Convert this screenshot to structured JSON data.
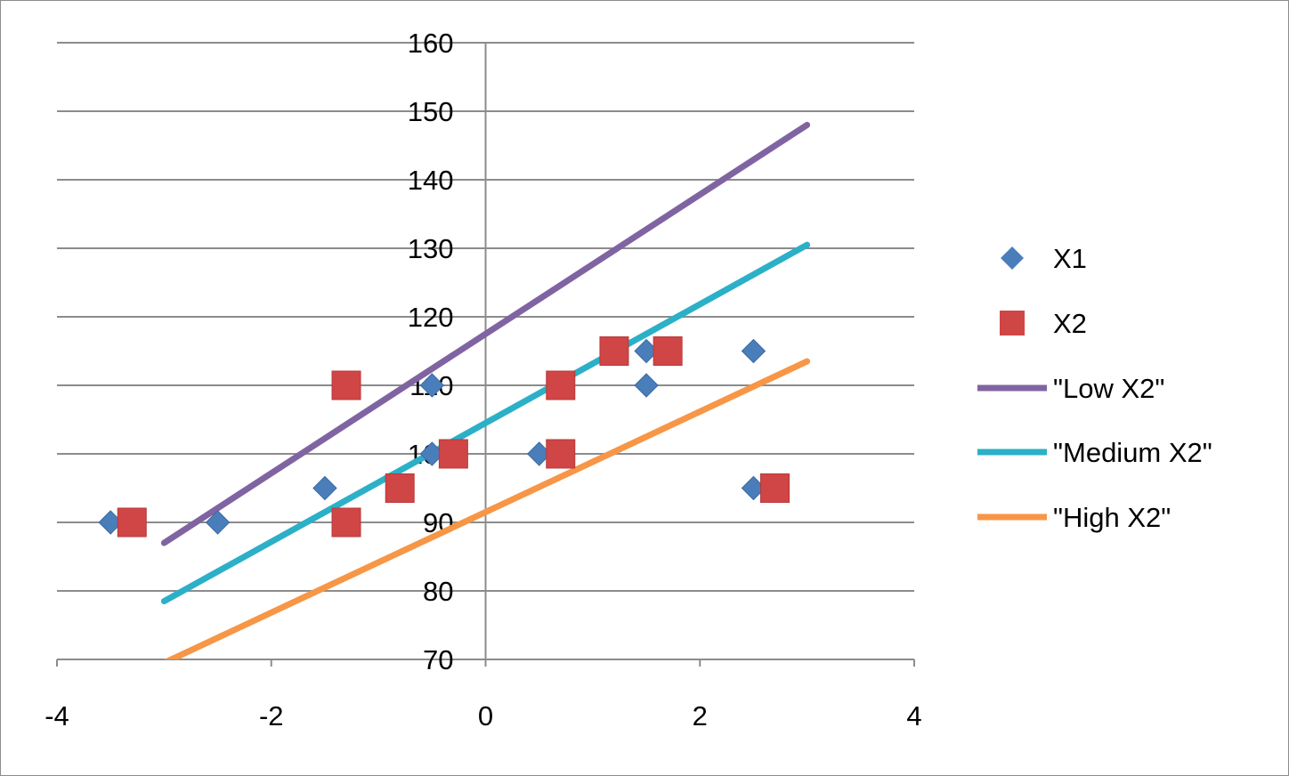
{
  "chart_data": {
    "type": "scatter",
    "title": "",
    "xlabel": "",
    "ylabel": "",
    "xlim": [
      -4,
      4
    ],
    "ylim": [
      70,
      160
    ],
    "x_ticks": [
      -4,
      -2,
      0,
      2,
      4
    ],
    "y_ticks": [
      70,
      80,
      90,
      100,
      110,
      120,
      130,
      140,
      150,
      160
    ],
    "x_tick_labels": [
      "-4",
      "-2",
      "0",
      "2",
      "4"
    ],
    "y_tick_labels": [
      "70",
      "80",
      "90",
      "100",
      "110",
      "120",
      "130",
      "140",
      "150",
      "160"
    ],
    "grid": "horizontal",
    "legend_position": "right",
    "series": [
      {
        "name": "X1",
        "kind": "scatter",
        "marker": "diamond",
        "color": "#4A7EBB",
        "points": [
          [
            -3.5,
            90
          ],
          [
            -2.5,
            90
          ],
          [
            -1.5,
            95
          ],
          [
            -0.5,
            110
          ],
          [
            -0.5,
            100
          ],
          [
            0.5,
            100
          ],
          [
            1.5,
            115
          ],
          [
            1.5,
            110
          ],
          [
            2.5,
            115
          ],
          [
            2.5,
            95
          ]
        ]
      },
      {
        "name": "X2",
        "kind": "scatter",
        "marker": "square",
        "color": "#D04545",
        "points": [
          [
            -3.3,
            90
          ],
          [
            -1.3,
            110
          ],
          [
            -1.3,
            90
          ],
          [
            -0.8,
            95
          ],
          [
            -0.3,
            100
          ],
          [
            0.7,
            110
          ],
          [
            0.7,
            100
          ],
          [
            1.2,
            115
          ],
          [
            1.7,
            115
          ],
          [
            2.7,
            95
          ]
        ]
      },
      {
        "name": "\"Low X2\"",
        "kind": "line",
        "color": "#8064A2",
        "points": [
          [
            -3,
            87
          ],
          [
            3,
            148
          ]
        ]
      },
      {
        "name": "\"Medium X2\"",
        "kind": "line",
        "color": "#2BB0C8",
        "points": [
          [
            -3,
            78.5
          ],
          [
            3,
            130.5
          ]
        ]
      },
      {
        "name": "\"High X2\"",
        "kind": "line",
        "color": "#F79646",
        "points": [
          [
            -3,
            69.5
          ],
          [
            3,
            113.5
          ]
        ]
      }
    ]
  }
}
